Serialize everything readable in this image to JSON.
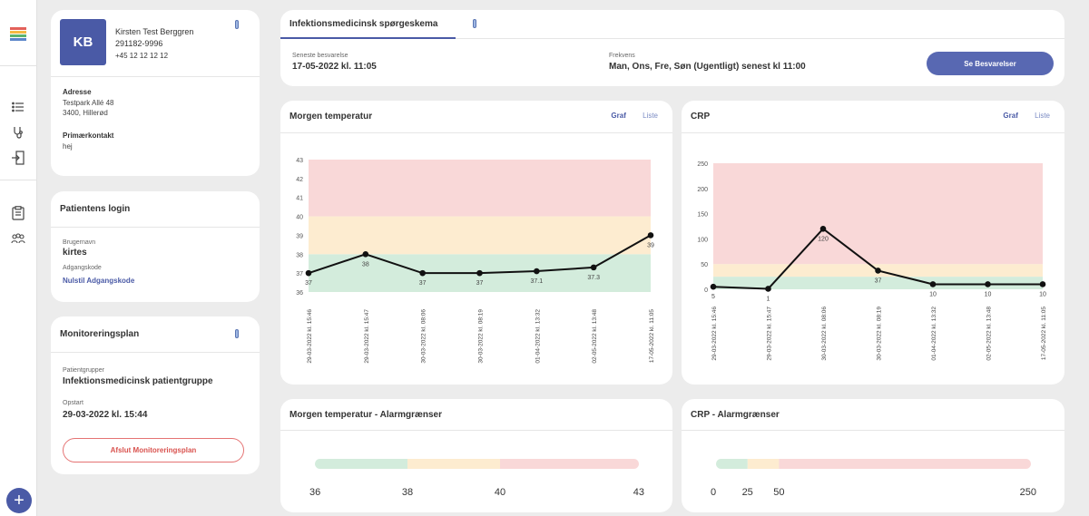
{
  "patient": {
    "initials": "KB",
    "name": "Kirsten Test Berggren",
    "cpr": "291182-9996",
    "phone": "+45 12 12 12 12",
    "address_label": "Adresse",
    "address_line1": "Testpark Allé 48",
    "address_line2": "3400, Hillerød",
    "contact_label": "Primærkontakt",
    "contact_value": "hej"
  },
  "login": {
    "title": "Patientens login",
    "username_label": "Brugernavn",
    "username": "kirtes",
    "password_label": "Adgangskode",
    "reset_link": "Nulstil Adgangskode"
  },
  "plan": {
    "title": "Monitoreringsplan",
    "group_label": "Patientgrupper",
    "group": "Infektionsmedicinsk patientgruppe",
    "start_label": "Opstart",
    "start": "29-03-2022 kl. 15:44",
    "end_button": "Afslut Monitoreringsplan"
  },
  "questionnaire": {
    "tab": "Infektionsmedicinsk spørgeskema",
    "last_label": "Seneste besvarelse",
    "last_value": "17-05-2022 kl. 11:05",
    "freq_label": "Frekvens",
    "freq_value": "Man, Ons, Fre, Søn (Ugentligt) senest kl 11:00",
    "button": "Se Besvarelser"
  },
  "tabs": {
    "graph": "Graf",
    "list": "Liste"
  },
  "chart_data": [
    {
      "type": "line",
      "title": "Morgen temperatur",
      "x": [
        "29-03-2022 kl. 15:46",
        "29-03-2022 kl. 15:47",
        "30-03-2022 kl. 08:06",
        "30-03-2022 kl. 08:19",
        "01-04-2022 kl. 13:32",
        "02-05-2022 kl. 13:48",
        "17-05-2022 kl. 11:05"
      ],
      "values": [
        37,
        38,
        37,
        37,
        37.1,
        37.3,
        39
      ],
      "ylim": [
        36,
        43
      ],
      "yticks": [
        36,
        37,
        38,
        39,
        40,
        41,
        42,
        43
      ],
      "bands": [
        {
          "from": 36,
          "to": 38,
          "color": "#d3ecdc"
        },
        {
          "from": 38,
          "to": 40,
          "color": "#fdecd0"
        },
        {
          "from": 40,
          "to": 43,
          "color": "#f9d8d8"
        }
      ]
    },
    {
      "type": "line",
      "title": "CRP",
      "x": [
        "29-03-2022 kl. 15:46",
        "29-03-2022 kl. 15:47",
        "30-03-2022 kl. 08:06",
        "30-03-2022 kl. 08:19",
        "01-04-2022 kl. 13:32",
        "02-05-2022 kl. 13:48",
        "17-05-2022 kl. 11:05"
      ],
      "values": [
        5,
        1,
        120,
        37,
        10,
        10,
        10
      ],
      "ylim": [
        0,
        250
      ],
      "yticks": [
        0,
        50,
        100,
        150,
        200,
        250
      ],
      "bands": [
        {
          "from": 0,
          "to": 25,
          "color": "#d3ecdc"
        },
        {
          "from": 25,
          "to": 50,
          "color": "#fdecd0"
        },
        {
          "from": 50,
          "to": 250,
          "color": "#f9d8d8"
        }
      ]
    }
  ],
  "alarms": [
    {
      "title": "Morgen temperatur - Alarmgrænser",
      "min": 36,
      "max": 43,
      "thresholds": [
        "36",
        "38",
        "40",
        "43"
      ],
      "threshold_values": [
        36,
        38,
        40,
        43
      ],
      "colors": [
        "#d3ecdc",
        "#fdecd0",
        "#f9d8d8"
      ]
    },
    {
      "title": "CRP - Alarmgrænser",
      "min": 0,
      "max": 250,
      "thresholds": [
        "0",
        "25",
        "50",
        "250"
      ],
      "threshold_values": [
        0,
        25,
        50,
        250
      ],
      "colors": [
        "#d3ecdc",
        "#fdecd0",
        "#f9d8d8"
      ]
    }
  ]
}
